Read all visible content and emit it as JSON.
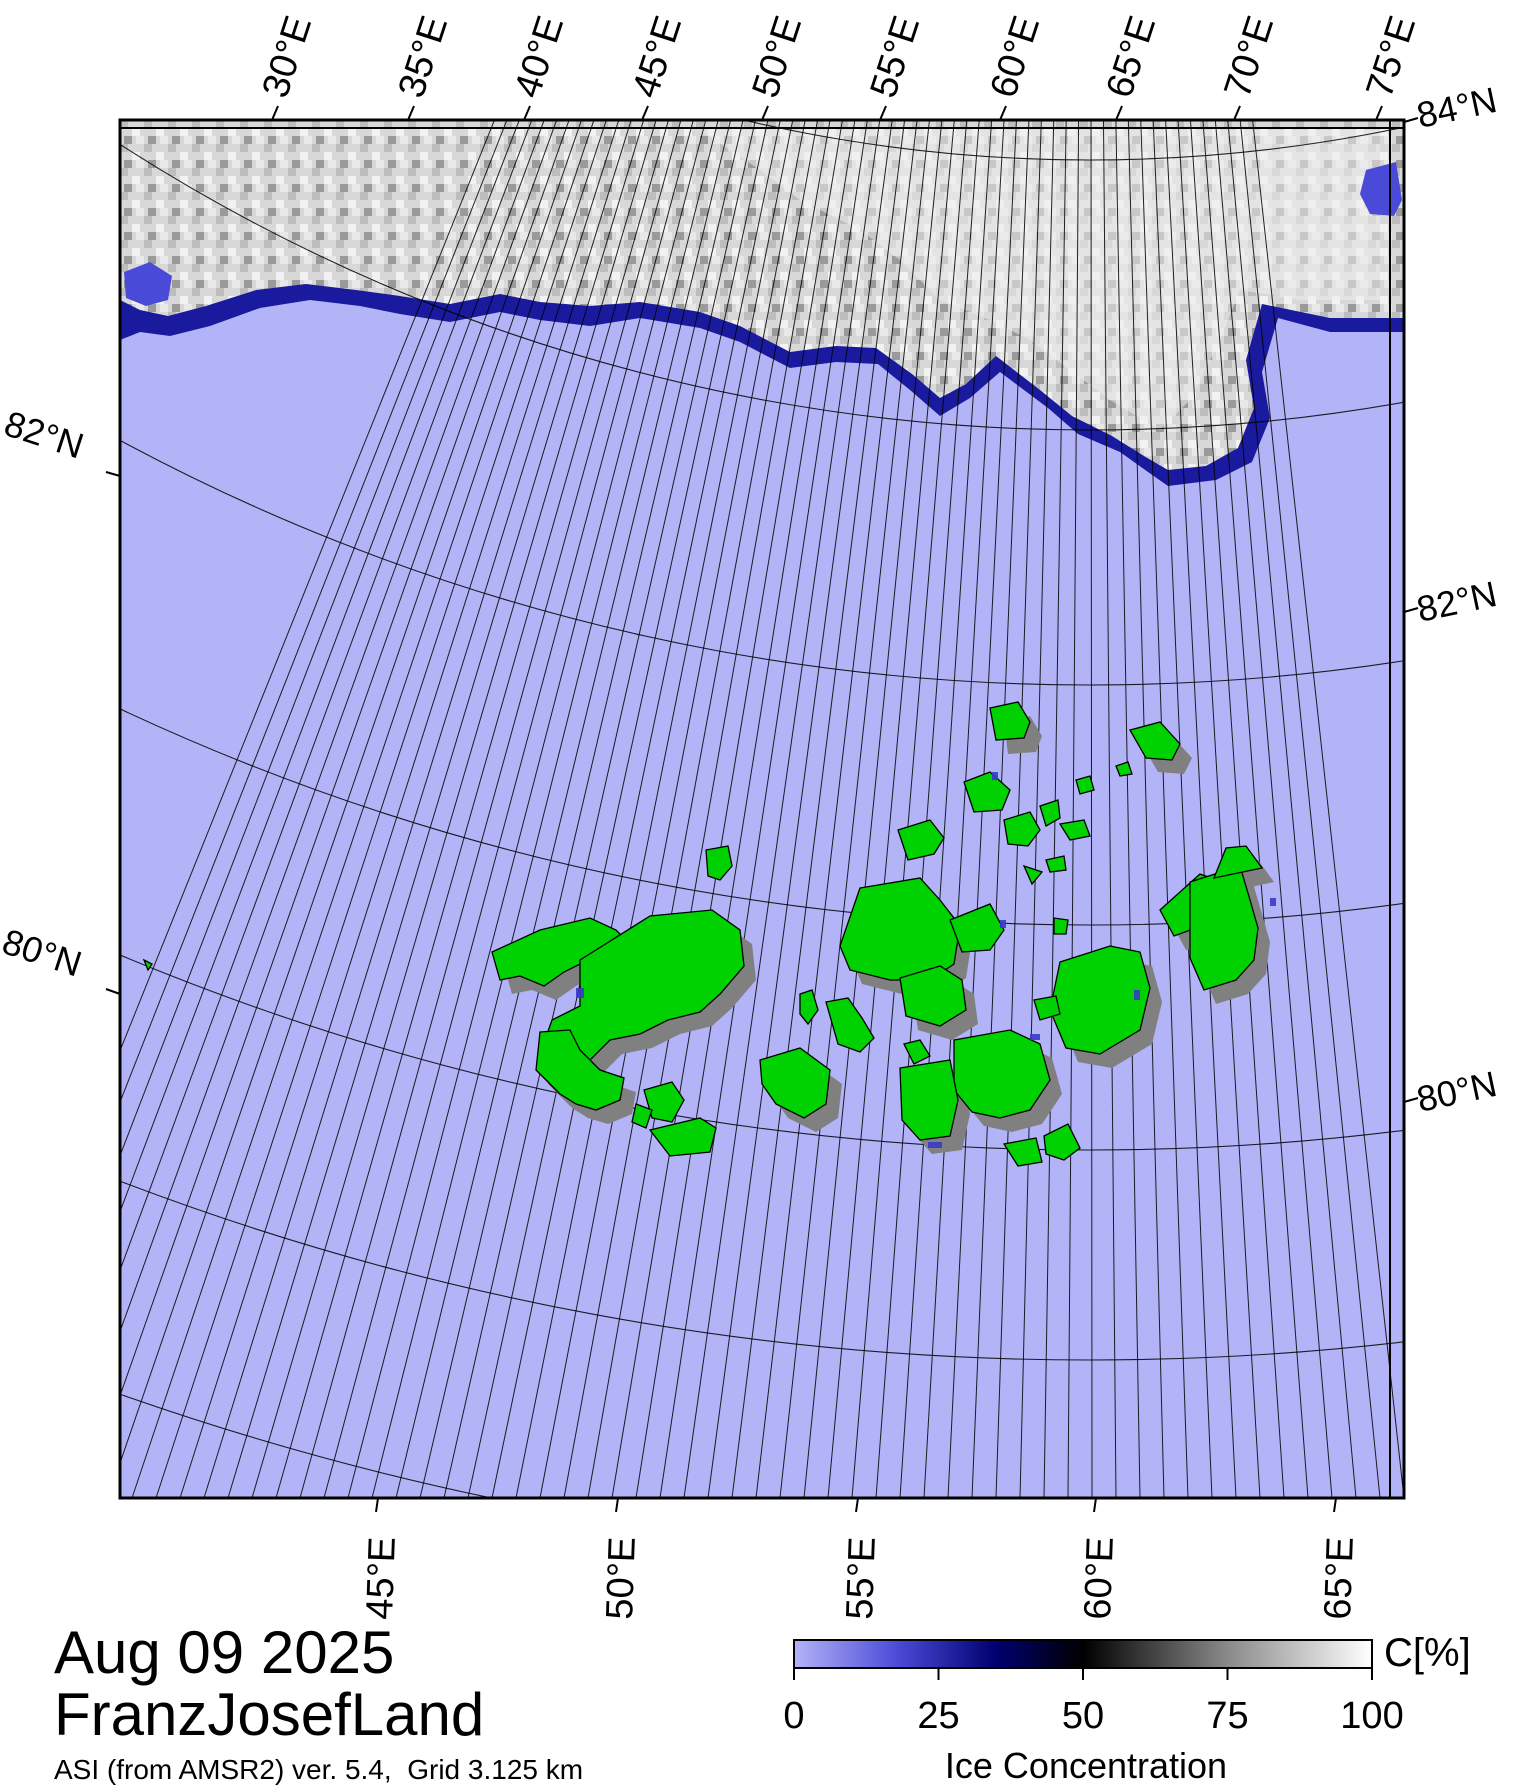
{
  "map": {
    "date": "Aug 09 2025",
    "region": "FranzJosefLand",
    "source_note": "ASI (from AMSR2) ver. 5.4,  Grid 3.125 km",
    "top_lon_labels": [
      "30°E",
      "35°E",
      "40°E",
      "45°E",
      "50°E",
      "55°E",
      "60°E",
      "65°E",
      "70°E",
      "75°E"
    ],
    "bottom_lon_labels": [
      "45°E",
      "50°E",
      "55°E",
      "60°E",
      "65°E"
    ],
    "left_lat_labels": [
      "82°N",
      "80°N"
    ],
    "right_lat_labels": [
      "84°N",
      "82°N",
      "80°N"
    ],
    "colors": {
      "open_water": "#b3b3f7",
      "land": "#00d100",
      "land_shadow": "#808080",
      "ice_edge": "#1a1a9e",
      "ice_light": "#e6e6e6",
      "frame": "#000000"
    },
    "legend": {
      "unit": "C[%]",
      "title": "Ice Concentration",
      "ticks": [
        "0",
        "25",
        "50",
        "75",
        "100"
      ],
      "colors": [
        "#b3b3f7",
        "#5c5ce6",
        "#000070",
        "#000000",
        "#7a7a7a",
        "#ffffff"
      ]
    }
  }
}
